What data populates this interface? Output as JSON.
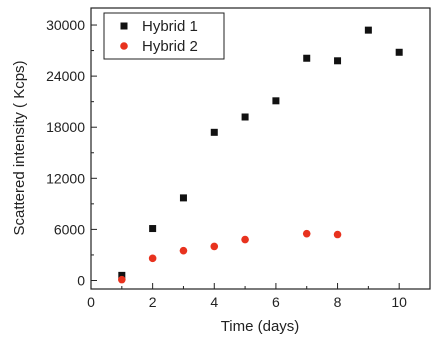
{
  "chart_data": {
    "type": "scatter",
    "title": "",
    "xlabel": "Time (days)",
    "ylabel": "Scattered intensity ( Kcps)",
    "xlim": [
      0,
      11
    ],
    "ylim": [
      -1000,
      32000
    ],
    "x_ticks": [
      0,
      2,
      4,
      6,
      8,
      10
    ],
    "y_ticks": [
      0,
      6000,
      12000,
      18000,
      24000,
      30000
    ],
    "grid": false,
    "legend_position": "top-left",
    "series": [
      {
        "name": "Hybrid 1",
        "marker": "square",
        "color": "#111111",
        "x": [
          1,
          2,
          3,
          4,
          5,
          6,
          7,
          8,
          9,
          10
        ],
        "y": [
          600,
          6100,
          9700,
          17400,
          19200,
          21100,
          26100,
          25800,
          29400,
          26800
        ]
      },
      {
        "name": "Hybrid 2",
        "marker": "circle",
        "color": "#e8321e",
        "x": [
          1,
          2,
          3,
          4,
          5,
          7,
          8
        ],
        "y": [
          100,
          2600,
          3500,
          4000,
          4800,
          5500,
          5400
        ]
      }
    ]
  }
}
